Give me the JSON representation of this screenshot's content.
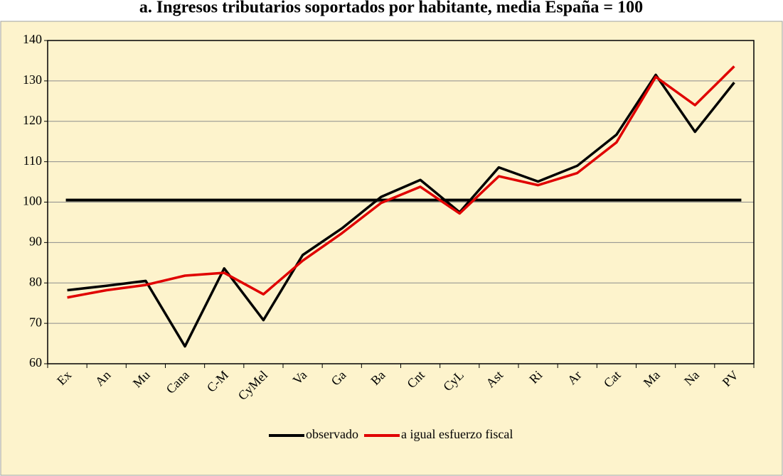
{
  "chart_data": {
    "type": "line",
    "title": "a. Ingresos tributarios soportados por habitante, media España = 100",
    "categories": [
      "Ex",
      "An",
      "Mu",
      "Cana",
      "C-M",
      "CyMel",
      "Va",
      "Ga",
      "Ba",
      "Cnt",
      "CyL",
      "Ast",
      "Ri",
      "Ar",
      "Cat",
      "Ma",
      "Na",
      "PV"
    ],
    "series": [
      {
        "name": "observado",
        "color": "#000000",
        "values": [
          78.2,
          79.3,
          80.5,
          64.3,
          83.6,
          70.8,
          86.9,
          93.5,
          101.3,
          105.5,
          97.5,
          108.6,
          105.1,
          109.0,
          116.7,
          131.5,
          117.4,
          129.6
        ]
      },
      {
        "name": "a igual esfuerzo fiscal",
        "color": "#e00000",
        "values": [
          76.4,
          78.2,
          79.5,
          81.8,
          82.5,
          77.2,
          85.5,
          92.3,
          99.8,
          103.8,
          97.2,
          106.4,
          104.2,
          107.2,
          114.8,
          131.0,
          124.0,
          133.6
        ]
      }
    ],
    "reference_line": 100.5,
    "ylim": [
      60,
      140
    ],
    "yticks": [
      60,
      70,
      80,
      90,
      100,
      110,
      120,
      130,
      140
    ],
    "grid": true,
    "legend": "bottom"
  }
}
